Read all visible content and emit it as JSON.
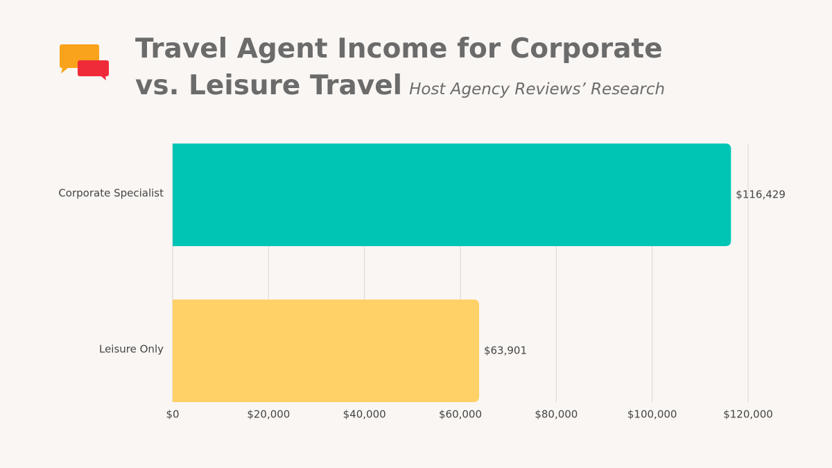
{
  "chart_data": {
    "type": "hbar",
    "title": "Travel Agent Income for Corporate vs. Leisure Travel",
    "subtitle": "Host Agency Reviews’ Research",
    "categories": [
      "Corporate Specialist",
      "Leisure Only"
    ],
    "values": [
      116429,
      63901
    ],
    "value_labels": [
      "$116,429",
      "$63,901"
    ],
    "colors": [
      "#00c5b5",
      "#ffd166"
    ],
    "xlim": [
      0,
      120000
    ],
    "xticks": [
      {
        "value": 0,
        "label": "$0"
      },
      {
        "value": 20000,
        "label": "$20,000"
      },
      {
        "value": 40000,
        "label": "$40,000"
      },
      {
        "value": 60000,
        "label": "$60,000"
      },
      {
        "value": 80000,
        "label": "$80,000"
      },
      {
        "value": 100000,
        "label": "$100,000"
      },
      {
        "value": 120000,
        "label": "$120,000"
      }
    ],
    "grid": true
  }
}
